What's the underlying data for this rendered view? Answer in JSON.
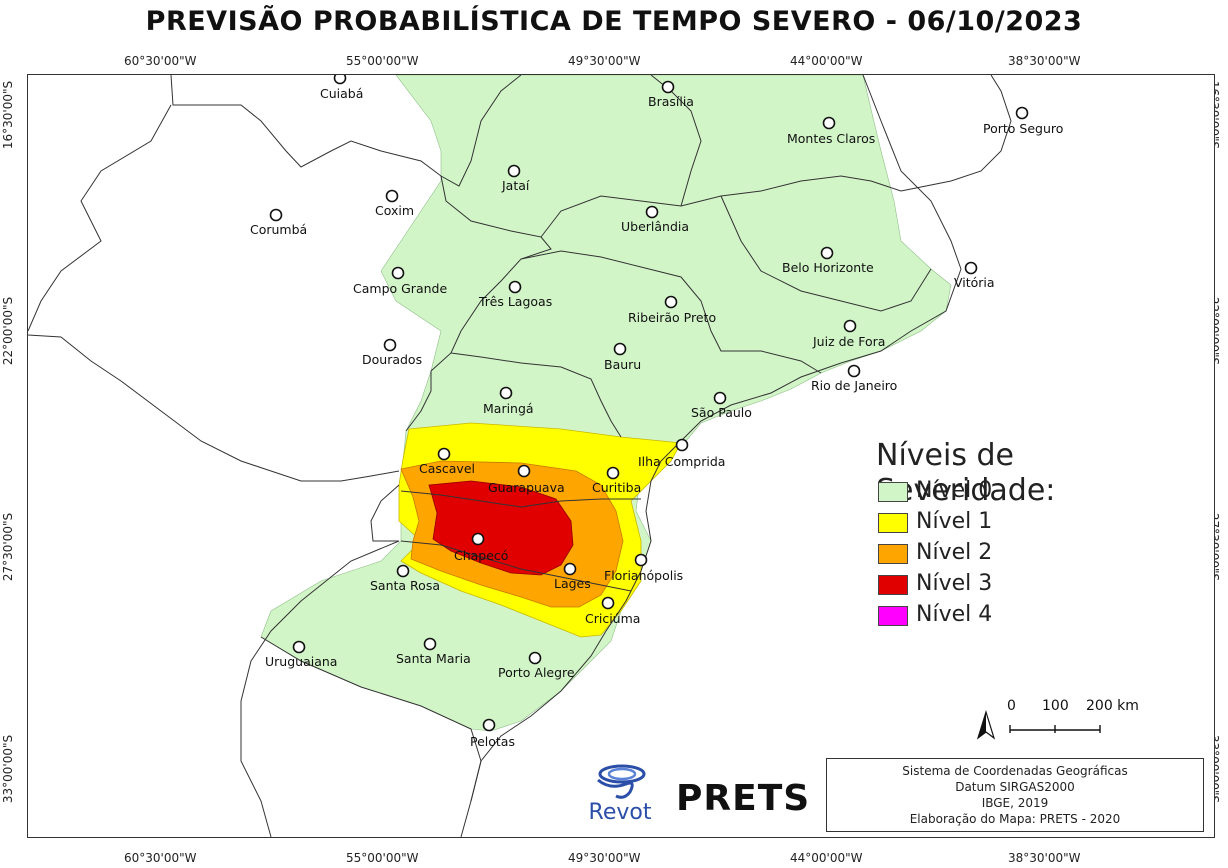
{
  "title": "PREVISÃO PROBABILÍSTICA DE TEMPO SEVERO - 06/10/2023",
  "longitudes": [
    "60°30'00\"W",
    "55°00'00\"W",
    "49°30'00\"W",
    "44°00'00\"W",
    "38°30'00\"W"
  ],
  "latitudes": [
    "16°30'00\"S",
    "22°00'00\"S",
    "27°30'00\"S",
    "33°00'00\"S"
  ],
  "cities": [
    {
      "name": "Cuiabá"
    },
    {
      "name": "Brasília"
    },
    {
      "name": "Montes Claros"
    },
    {
      "name": "Porto Seguro"
    },
    {
      "name": "Jataí"
    },
    {
      "name": "Coxim"
    },
    {
      "name": "Corumbá"
    },
    {
      "name": "Uberlândia"
    },
    {
      "name": "Belo Horizonte"
    },
    {
      "name": "Vitória"
    },
    {
      "name": "Campo Grande"
    },
    {
      "name": "Três Lagoas"
    },
    {
      "name": "Ribeirão Preto"
    },
    {
      "name": "Juiz de Fora"
    },
    {
      "name": "Dourados"
    },
    {
      "name": "Bauru"
    },
    {
      "name": "Rio de Janeiro"
    },
    {
      "name": "Maringá"
    },
    {
      "name": "São Paulo"
    },
    {
      "name": "Ilha Comprida"
    },
    {
      "name": "Cascavel"
    },
    {
      "name": "Guarapuava"
    },
    {
      "name": "Curitiba"
    },
    {
      "name": "Chapecó"
    },
    {
      "name": "Lages"
    },
    {
      "name": "Florianópolis"
    },
    {
      "name": "Santa Rosa"
    },
    {
      "name": "Criciúma"
    },
    {
      "name": "Uruguaiana"
    },
    {
      "name": "Santa Maria"
    },
    {
      "name": "Porto Alegre"
    },
    {
      "name": "Pelotas"
    }
  ],
  "legend": {
    "title": "Níveis de Severidade:",
    "items": [
      {
        "label": "Nível 0",
        "color": "#d2f5c8"
      },
      {
        "label": "Nível 1",
        "color": "#ffff00"
      },
      {
        "label": "Nível 2",
        "color": "#ffa500"
      },
      {
        "label": "Nível 3",
        "color": "#e00000"
      },
      {
        "label": "Nível 4",
        "color": "#ff00ff"
      }
    ]
  },
  "scale": {
    "labels": [
      "0",
      "100",
      "200 km"
    ]
  },
  "credits": [
    "Sistema de Coordenadas Geográficas",
    "Datum SIRGAS2000",
    "IBGE, 2019",
    "Elaboração do Mapa: PRETS - 2020"
  ],
  "logos": {
    "revot": "Revot",
    "prets": "PRETS"
  }
}
